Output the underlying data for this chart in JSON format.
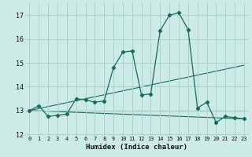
{
  "xlabel": "Humidex (Indice chaleur)",
  "bg_color": "#cceae6",
  "grid_color": "#aad4cf",
  "line_color": "#1a6b5c",
  "xlim": [
    -0.5,
    23.5
  ],
  "ylim": [
    11.95,
    17.5
  ],
  "yticks": [
    12,
    13,
    14,
    15,
    16,
    17
  ],
  "xticks": [
    0,
    1,
    2,
    3,
    4,
    5,
    6,
    7,
    8,
    9,
    10,
    11,
    12,
    13,
    14,
    15,
    16,
    17,
    18,
    19,
    20,
    21,
    22,
    23
  ],
  "main_series": {
    "x": [
      0,
      1,
      2,
      3,
      4,
      5,
      6,
      7,
      8,
      9,
      10,
      11,
      12,
      13,
      14,
      15,
      16,
      17,
      18,
      19,
      20,
      21,
      22,
      23
    ],
    "y": [
      13.0,
      13.2,
      12.75,
      12.8,
      12.85,
      13.5,
      13.45,
      13.35,
      13.4,
      14.8,
      15.45,
      15.5,
      13.65,
      13.7,
      16.35,
      17.0,
      17.1,
      16.4,
      13.1,
      13.35,
      12.5,
      12.75,
      12.7,
      12.65
    ]
  },
  "extra_lines": [
    {
      "x": [
        0,
        23
      ],
      "y": [
        13.0,
        14.9
      ]
    },
    {
      "x": [
        0,
        23
      ],
      "y": [
        13.0,
        13.0
      ]
    },
    {
      "x": [
        0,
        23
      ],
      "y": [
        13.0,
        12.65
      ]
    }
  ]
}
